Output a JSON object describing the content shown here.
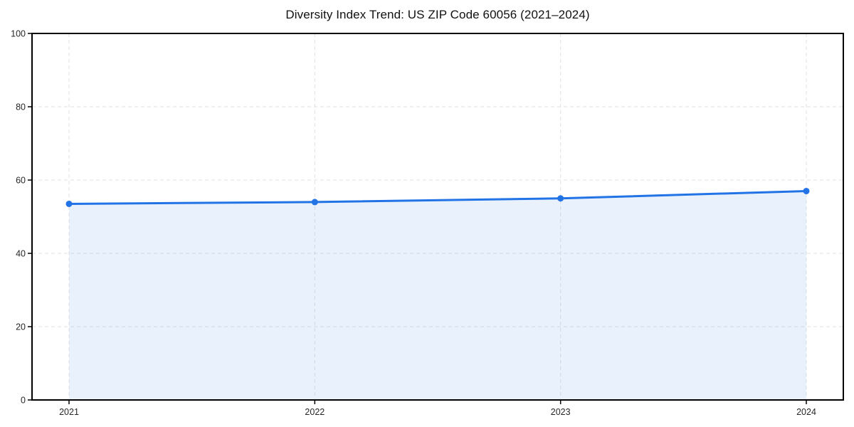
{
  "chart_data": {
    "type": "area",
    "title": "Diversity Index Trend: US ZIP Code 60056 (2021–2024)",
    "xlabel": "",
    "ylabel": "",
    "categories": [
      "2021",
      "2022",
      "2023",
      "2024"
    ],
    "series": [
      {
        "name": "Diversity Index",
        "values": [
          53.5,
          54.0,
          55.0,
          57.0
        ]
      }
    ],
    "ylim": [
      0,
      100
    ],
    "yticks": [
      0,
      20,
      40,
      60,
      80,
      100
    ],
    "grid": true,
    "grid_style": "dashed",
    "legend_position": "none",
    "colors": {
      "line": "#2273e6",
      "marker": "#2273e6",
      "area_fill": "rgba(34,115,230,0.10)",
      "grid": "#e2e2e2",
      "spine": "#000000",
      "tick_text": "#262626",
      "title_text": "#111111",
      "background": "#ffffff"
    }
  }
}
